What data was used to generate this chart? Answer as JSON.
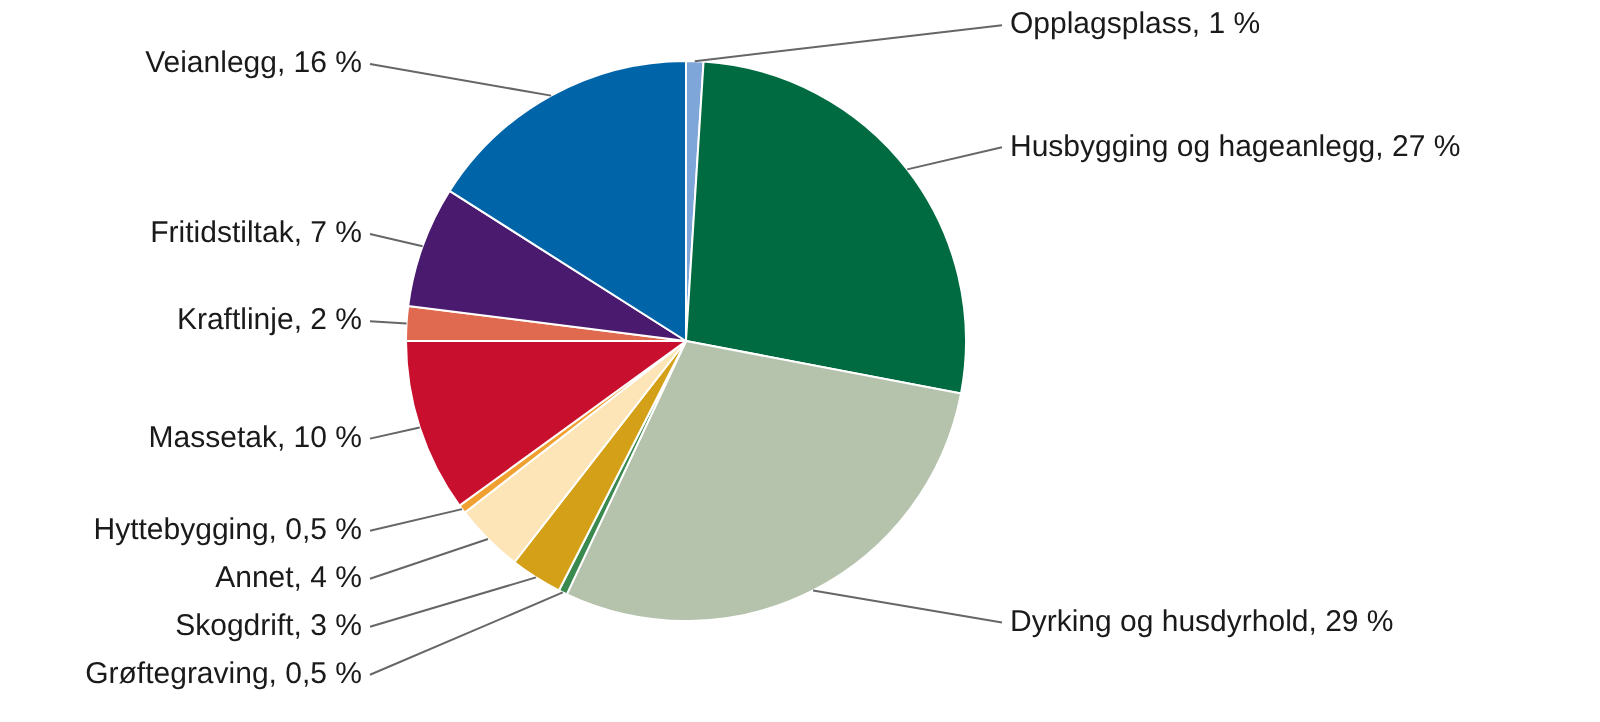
{
  "chart_data": {
    "type": "pie",
    "categories": [
      "Opplagsplass",
      "Husbygging og hageanlegg",
      "Dyrking og husdyrhold",
      "Grøftegraving",
      "Skogdrift",
      "Annet",
      "Hyttebygging",
      "Massetak",
      "Kraftlinje",
      "Fritidstiltak",
      "Veianlegg"
    ],
    "values": [
      1,
      27,
      29,
      0.5,
      3,
      4,
      0.5,
      10,
      2,
      7,
      16
    ],
    "value_labels": [
      "1 %",
      "27 %",
      "29 %",
      "0,5 %",
      "3 %",
      "4 %",
      "0,5 %",
      "10 %",
      "2 %",
      "7 %",
      "16 %"
    ],
    "colors": [
      "#7ea6d8",
      "#006a40",
      "#b5c2ac",
      "#3a8a50",
      "#d4a017",
      "#fde5b8",
      "#f0a030",
      "#c8102e",
      "#e06a50",
      "#4a1a6e",
      "#0064a8"
    ],
    "legend": false
  }
}
